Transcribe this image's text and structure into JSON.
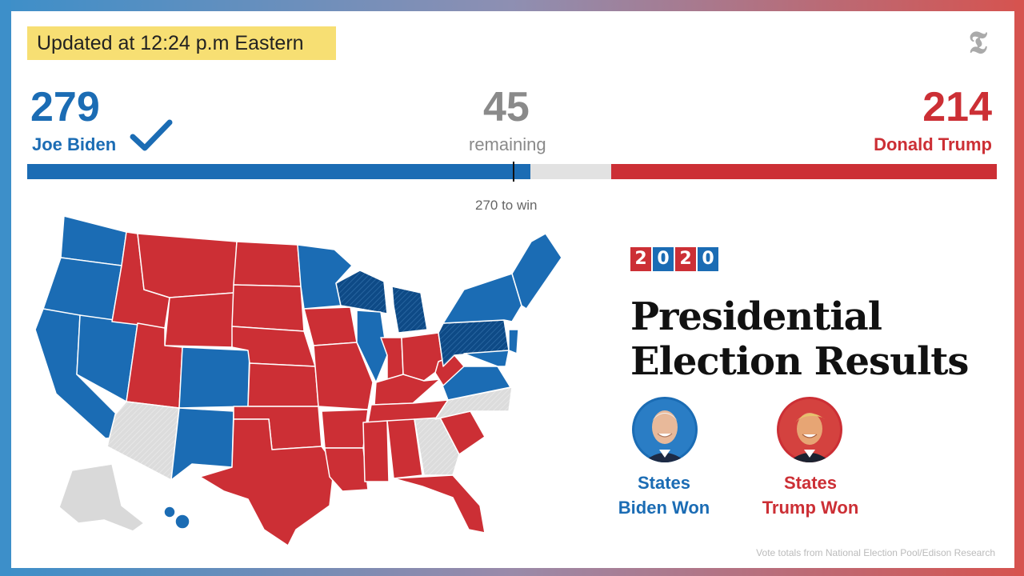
{
  "updated": "Updated at 12:24 p.m Eastern",
  "logo": "𝕿",
  "biden": {
    "ev": "279",
    "name": "Joe Biden",
    "color": "#1b6cb4",
    "status": "check-icon"
  },
  "remaining": {
    "num": "45",
    "label": "remaining"
  },
  "trump": {
    "ev": "214",
    "name": "Donald Trump",
    "color": "#cc2f35"
  },
  "bar": {
    "total": 538,
    "biden": 279,
    "remaining": 45,
    "trump": 214,
    "threshold": 270,
    "threshold_label": "270 to win",
    "remaining_color": "#e2e2e2"
  },
  "year_digits": [
    "2",
    "0",
    "2",
    "0"
  ],
  "headline": {
    "line1": "Presidential",
    "line2": "Election Results"
  },
  "cards": {
    "biden_caption": {
      "line1": "States",
      "line2": "Biden Won"
    },
    "trump_caption": {
      "line1": "States",
      "line2": "Trump Won"
    }
  },
  "credit": "Vote totals from National Election Pool/Edison Research"
}
